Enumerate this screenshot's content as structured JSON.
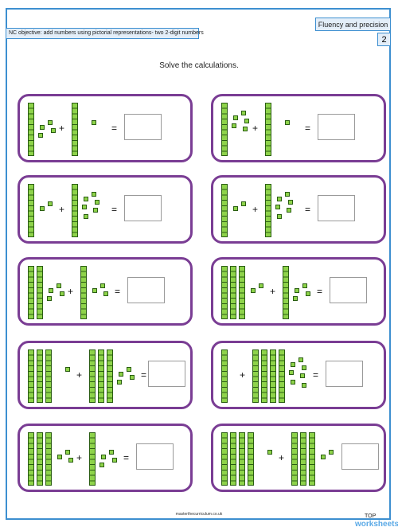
{
  "header": {
    "title": "Fluency and precision",
    "page_number": "2",
    "objective": "NC objective: add numbers using pictorial representations- two 2-digit numbers"
  },
  "instruction": "Solve the calculations.",
  "symbols": {
    "plus": "+",
    "equals": "="
  },
  "problems": [
    {
      "tens_a": 1,
      "ones_a": 4,
      "tens_b": 1,
      "ones_b": 1
    },
    {
      "tens_a": 1,
      "ones_a": 5,
      "tens_b": 1,
      "ones_b": 1
    },
    {
      "tens_a": 1,
      "ones_a": 2,
      "tens_b": 1,
      "ones_b": 6
    },
    {
      "tens_a": 1,
      "ones_a": 2,
      "tens_b": 1,
      "ones_b": 6
    },
    {
      "tens_a": 2,
      "ones_a": 4,
      "tens_b": 1,
      "ones_b": 3
    },
    {
      "tens_a": 3,
      "ones_a": 2,
      "tens_b": 1,
      "ones_b": 4
    },
    {
      "tens_a": 3,
      "ones_a": 1,
      "tens_b": 3,
      "ones_b": 4
    },
    {
      "tens_a": 1,
      "ones_a": 0,
      "tens_b": 4,
      "ones_b": 7
    },
    {
      "tens_a": 3,
      "ones_a": 3,
      "tens_b": 1,
      "ones_b": 4
    },
    {
      "tens_a": 4,
      "ones_a": 1,
      "tens_b": 3,
      "ones_b": 2
    }
  ],
  "footer": {
    "url": "masterthecurriculum.co.uk",
    "brand_top": "TOP",
    "brand_main": "worksheets"
  }
}
